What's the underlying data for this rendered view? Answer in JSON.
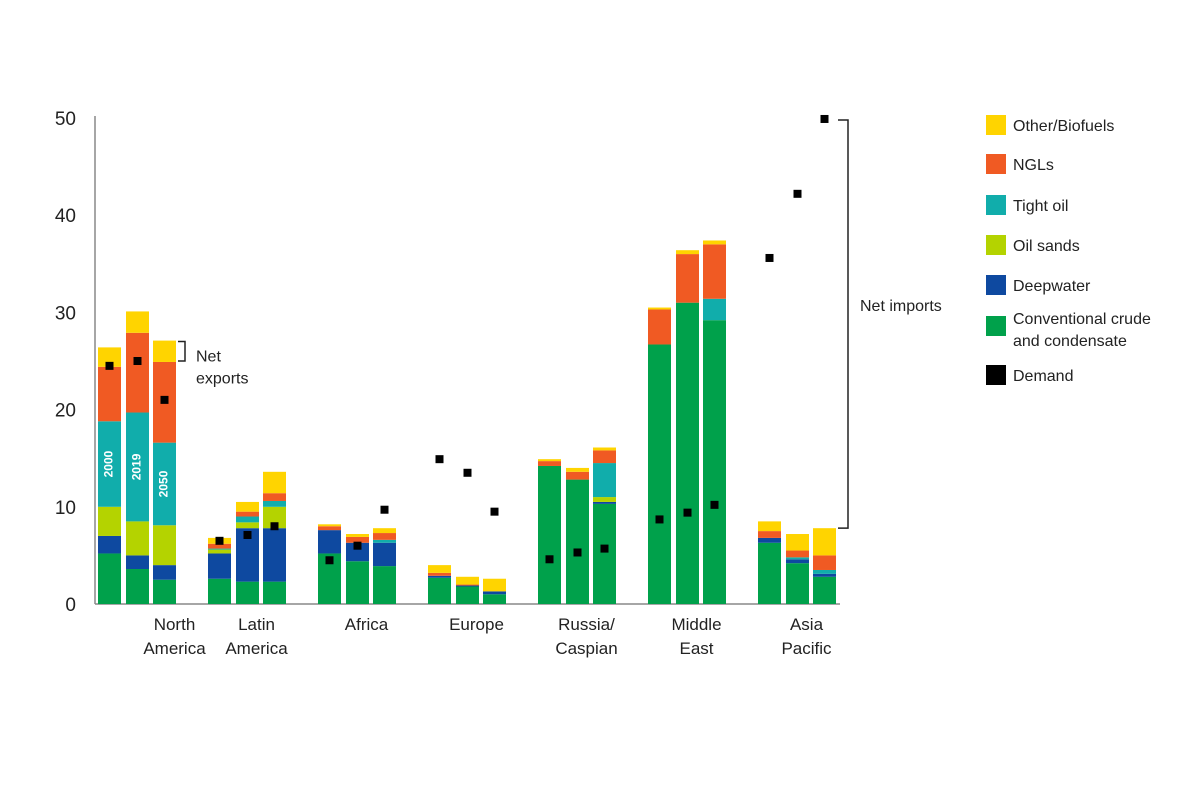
{
  "chart_data": {
    "type": "bar",
    "stacked": true,
    "ylim": [
      0,
      50
    ],
    "yticks": [
      "0",
      "10",
      "20",
      "30",
      "40",
      "50"
    ],
    "years": [
      "2000",
      "2019",
      "2050"
    ],
    "groups": [
      {
        "label_lines": [
          "North",
          "America"
        ],
        "bars": [
          {
            "year": "2000",
            "stack": [
              5.2,
              1.8,
              3.0,
              8.8,
              5.6,
              2.0
            ],
            "demand": 24.5
          },
          {
            "year": "2019",
            "stack": [
              3.6,
              1.4,
              3.5,
              11.2,
              8.2,
              2.2
            ],
            "demand": 25.0
          },
          {
            "year": "2050",
            "stack": [
              2.5,
              1.5,
              4.1,
              8.5,
              8.3,
              2.2
            ],
            "demand": 21.0
          }
        ]
      },
      {
        "label_lines": [
          "Latin",
          "America"
        ],
        "bars": [
          {
            "year": "2000",
            "stack": [
              2.6,
              2.6,
              0.4,
              0.1,
              0.5,
              0.6
            ],
            "demand": 6.5
          },
          {
            "year": "2019",
            "stack": [
              2.3,
              5.5,
              0.6,
              0.6,
              0.5,
              1.0
            ],
            "demand": 7.1
          },
          {
            "year": "2050",
            "stack": [
              2.3,
              5.5,
              2.2,
              0.6,
              0.8,
              2.2
            ],
            "demand": 8.0
          }
        ]
      },
      {
        "label_lines": [
          "Africa"
        ],
        "bars": [
          {
            "year": "2000",
            "stack": [
              5.2,
              2.4,
              0,
              0,
              0.4,
              0.2
            ],
            "demand": 4.5
          },
          {
            "year": "2019",
            "stack": [
              4.4,
              1.9,
              0,
              0,
              0.6,
              0.3
            ],
            "demand": 6.0
          },
          {
            "year": "2050",
            "stack": [
              3.9,
              2.4,
              0,
              0.3,
              0.7,
              0.5
            ],
            "demand": 9.7
          }
        ]
      },
      {
        "label_lines": [
          "Europe"
        ],
        "bars": [
          {
            "year": "2000",
            "stack": [
              2.7,
              0.2,
              0,
              0,
              0.3,
              0.8
            ],
            "demand": 14.9
          },
          {
            "year": "2019",
            "stack": [
              1.8,
              0.1,
              0,
              0,
              0.1,
              0.8
            ],
            "demand": 13.5
          },
          {
            "year": "2050",
            "stack": [
              1.0,
              0.3,
              0,
              0,
              0,
              1.3
            ],
            "demand": 9.5
          }
        ]
      },
      {
        "label_lines": [
          "Russia/",
          "Caspian"
        ],
        "bars": [
          {
            "year": "2000",
            "stack": [
              14.2,
              0,
              0,
              0,
              0.5,
              0.2
            ],
            "demand": 4.6
          },
          {
            "year": "2019",
            "stack": [
              12.8,
              0,
              0,
              0,
              0.8,
              0.4
            ],
            "demand": 5.3
          },
          {
            "year": "2050",
            "stack": [
              10.3,
              0.2,
              0.5,
              3.5,
              1.3,
              0.3
            ],
            "demand": 5.7
          }
        ]
      },
      {
        "label_lines": [
          "Middle",
          "East"
        ],
        "bars": [
          {
            "year": "2000",
            "stack": [
              26.7,
              0,
              0,
              0,
              3.6,
              0.2
            ],
            "demand": 8.7
          },
          {
            "year": "2019",
            "stack": [
              31.0,
              0,
              0,
              0,
              5.0,
              0.4
            ],
            "demand": 9.4
          },
          {
            "year": "2050",
            "stack": [
              29.2,
              0,
              0,
              2.2,
              5.6,
              0.4
            ],
            "demand": 10.2
          }
        ]
      },
      {
        "label_lines": [
          "Asia",
          "Pacific"
        ],
        "bars": [
          {
            "year": "2000",
            "stack": [
              6.3,
              0.5,
              0,
              0,
              0.7,
              1.0
            ],
            "demand": 35.6
          },
          {
            "year": "2019",
            "stack": [
              4.2,
              0.4,
              0,
              0.2,
              0.7,
              1.7
            ],
            "demand": 42.2
          },
          {
            "year": "2050",
            "stack": [
              2.8,
              0.3,
              0,
              0.4,
              1.5,
              2.8
            ],
            "demand": 49.9
          }
        ]
      }
    ],
    "series": [
      {
        "key": "conventional",
        "name_lines": [
          "Conventional crude",
          "and  condensate"
        ],
        "color": "#00a14b"
      },
      {
        "key": "deepwater",
        "name_lines": [
          "Deepwater"
        ],
        "color": "#0e49a0"
      },
      {
        "key": "oil_sands",
        "name_lines": [
          "Oil sands"
        ],
        "color": "#b4d300"
      },
      {
        "key": "tight_oil",
        "name_lines": [
          "Tight oil"
        ],
        "color": "#11adab"
      },
      {
        "key": "ngls",
        "name_lines": [
          "NGLs"
        ],
        "color": "#f05a23"
      },
      {
        "key": "other_biofuels",
        "name_lines": [
          "Other/Biofuels"
        ],
        "color": "#ffd400"
      }
    ],
    "legend_order": [
      "other_biofuels",
      "ngls",
      "tight_oil",
      "oil_sands",
      "deepwater",
      "conventional"
    ],
    "demand_legend": {
      "name": "Demand",
      "color": "#000000"
    },
    "annotations": {
      "net_exports": {
        "lines": [
          "Net",
          "exports"
        ],
        "from": 27.0,
        "to": 25.0
      },
      "net_imports": {
        "text": "Net imports",
        "from": 50.0,
        "to": 7.8
      }
    },
    "legend_position": "right"
  }
}
